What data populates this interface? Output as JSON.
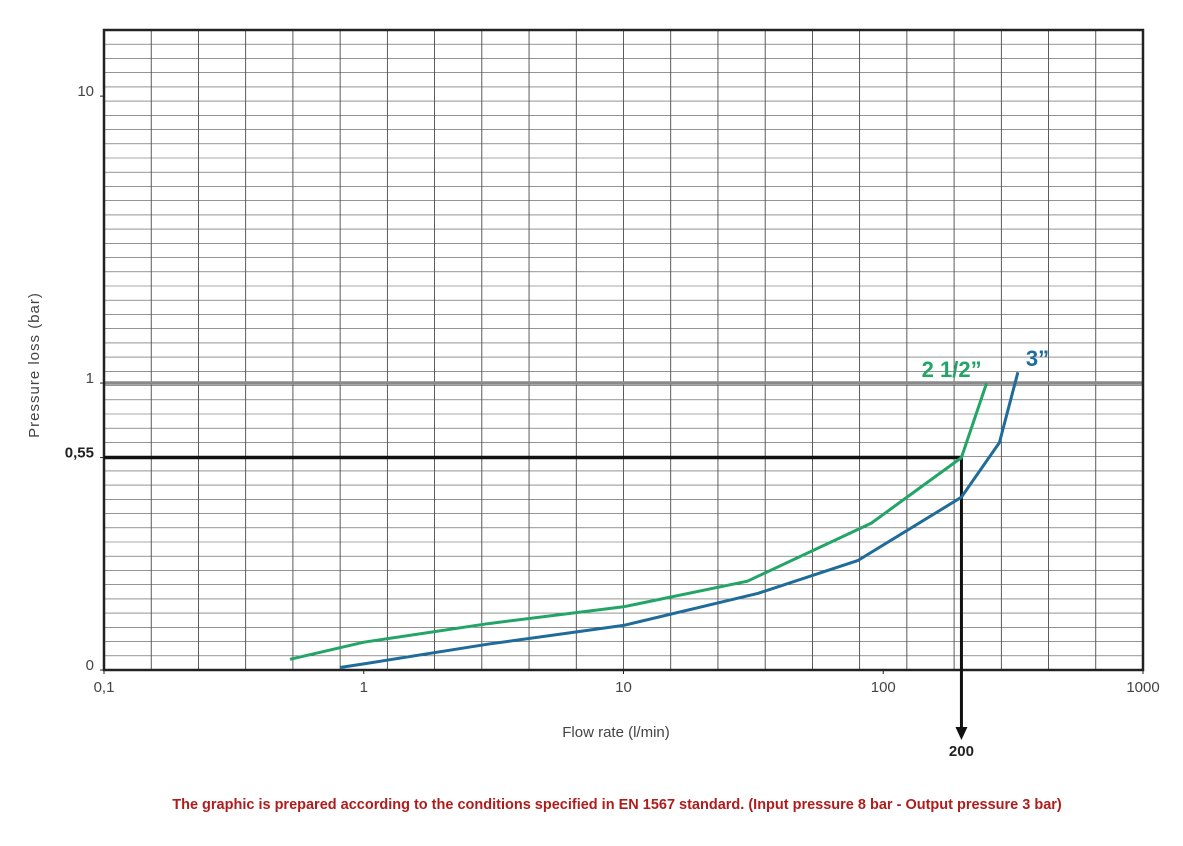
{
  "chart_data": {
    "type": "line",
    "x_label": "Flow rate (l/min)",
    "y_label": "Pressure loss (bar)",
    "footnote": "The graphic is prepared according to the conditions specified in EN 1567 standard. (Input pressure 8 bar - Output pressure 3 bar)",
    "xscale": "log",
    "yscale": "log",
    "xlim": [
      0.1,
      1000
    ],
    "ylim": [
      0.1,
      17
    ],
    "xticks": [
      {
        "value": 0.1,
        "label": "0,1"
      },
      1,
      10,
      100,
      1000
    ],
    "yticks": [
      {
        "value": 0.1,
        "label": "0"
      },
      {
        "value": 0.55,
        "label": "0,55"
      },
      1,
      10
    ],
    "highlight_y": 1,
    "reference": {
      "x": 200,
      "y": 0.55
    },
    "series": [
      {
        "name": "2 1/2”",
        "color": "#22a567",
        "x": [
          0.52,
          1,
          3,
          10,
          30,
          90,
          200,
          250
        ],
        "values": [
          0.109,
          0.125,
          0.145,
          0.166,
          0.204,
          0.325,
          0.55,
          1
        ]
      },
      {
        "name": "3”",
        "color": "#1f6b9a",
        "x": [
          0.81,
          1,
          3,
          10,
          33,
          80,
          200,
          280,
          330
        ],
        "values": [
          0.102,
          0.105,
          0.123,
          0.143,
          0.185,
          0.241,
          0.4,
          0.62,
          1.09
        ]
      }
    ]
  }
}
